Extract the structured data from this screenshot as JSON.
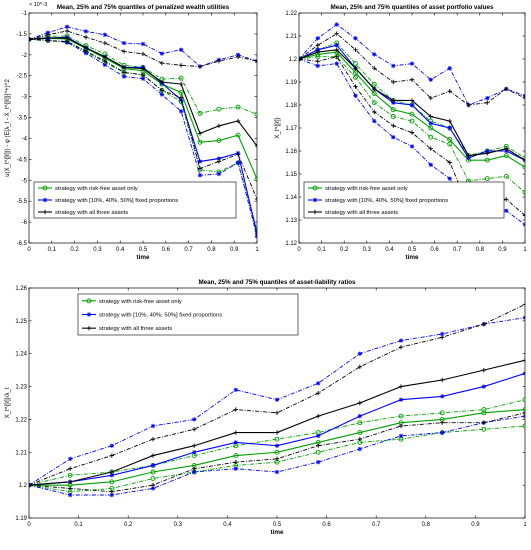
{
  "chart_data": [
    {
      "type": "line",
      "title": "Mean, 25% and 75% quantiles of penalized wealth utilities",
      "xlabel": "time",
      "ylabel": "u(X_t^{[ℓ]}) - φ (E[λ_t - X_t^{[ℓ]}]^+)^2",
      "exponent_label": "× 10^-3",
      "xlim": [
        0,
        1
      ],
      "ylim": [
        -6.5,
        -1
      ],
      "xticks": [
        0,
        0.1,
        0.2,
        0.3,
        0.4,
        0.5,
        0.6,
        0.7,
        0.8,
        0.9,
        1
      ],
      "xtick_labels": [
        "0",
        "0.1",
        "0.2",
        "0.3",
        "0.4",
        "0.5",
        "0.6",
        "0.7",
        "0.8",
        "0.9",
        "1"
      ],
      "yticks": [
        -6.5,
        -6,
        -5.5,
        -5,
        -4.5,
        -4,
        -3.5,
        -3,
        -2.5,
        -2,
        -1.5,
        -1
      ],
      "ytick_labels": [
        "-6.5",
        "-6",
        "-5.5",
        "-5",
        "-4.5",
        "-4",
        "-3.5",
        "-3",
        "-2.5",
        "-2",
        "-1.5",
        "-1"
      ],
      "legend_position": "bottom-left",
      "x": [
        0,
        0.083,
        0.167,
        0.25,
        0.333,
        0.417,
        0.5,
        0.583,
        0.667,
        0.75,
        0.833,
        0.917,
        1
      ],
      "series": [
        {
          "name": "strategy with risk-free asset only",
          "color": "#00a000",
          "marker": "o",
          "style": "solid",
          "values": [
            -1.63,
            -1.61,
            -1.62,
            -1.85,
            -2.08,
            -2.33,
            -2.38,
            -2.7,
            -2.9,
            -4.09,
            -4.05,
            -3.92,
            -4.97
          ]
        },
        {
          "name": "",
          "color": "#00a000",
          "marker": "o",
          "style": "dashdot",
          "values": [
            -1.63,
            -1.56,
            -1.55,
            -1.78,
            -1.98,
            -2.25,
            -2.3,
            -2.58,
            -2.56,
            -3.4,
            -3.3,
            -3.25,
            -3.42
          ]
        },
        {
          "name": "",
          "color": "#00a000",
          "marker": "o",
          "style": "dashdot",
          "values": [
            -1.63,
            -1.66,
            -1.7,
            -1.93,
            -2.18,
            -2.42,
            -2.48,
            -2.85,
            -3.12,
            -4.75,
            -4.8,
            -4.58,
            -6.2
          ]
        },
        {
          "name": "strategy with [10%, 40%, 50%] fixed proportions",
          "color": "#0000ff",
          "marker": "*",
          "style": "solid",
          "values": [
            -1.63,
            -1.6,
            -1.58,
            -1.83,
            -2.05,
            -2.3,
            -2.3,
            -2.68,
            -3.08,
            -4.55,
            -4.48,
            -4.35,
            -6.28
          ]
        },
        {
          "name": "",
          "color": "#0000ff",
          "marker": "*",
          "style": "dashdot",
          "values": [
            -1.63,
            -1.47,
            -1.33,
            -1.44,
            -1.52,
            -1.72,
            -1.74,
            -1.97,
            -1.88,
            -2.28,
            -2.12,
            -2.0,
            -2.15
          ]
        },
        {
          "name": "",
          "color": "#0000ff",
          "marker": "*",
          "style": "dashdot",
          "values": [
            -1.63,
            -1.65,
            -1.7,
            -1.96,
            -2.24,
            -2.52,
            -2.57,
            -2.95,
            -3.35,
            -4.88,
            -4.85,
            -4.58,
            -6.34
          ]
        },
        {
          "name": "strategy with all three assets",
          "color": "#000000",
          "marker": "+",
          "style": "solid",
          "values": [
            -1.63,
            -1.6,
            -1.6,
            -1.83,
            -2.05,
            -2.3,
            -2.33,
            -2.65,
            -2.7,
            -3.88,
            -3.7,
            -3.58,
            -4.18
          ]
        },
        {
          "name": "",
          "color": "#000000",
          "marker": "+",
          "style": "dashdot",
          "values": [
            -1.63,
            -1.52,
            -1.43,
            -1.58,
            -1.72,
            -1.92,
            -1.98,
            -2.2,
            -2.25,
            -2.28,
            -2.15,
            -2.05,
            -2.15
          ]
        },
        {
          "name": "",
          "color": "#000000",
          "marker": "+",
          "style": "dashdot",
          "values": [
            -1.63,
            -1.66,
            -1.68,
            -1.91,
            -2.15,
            -2.42,
            -2.48,
            -2.85,
            -3.02,
            -4.72,
            -4.55,
            -4.38,
            -5.45
          ]
        }
      ]
    },
    {
      "type": "line",
      "title": "Mean, 25% and 75% quantiles of asset portfolio values",
      "xlabel": "time",
      "ylabel": "X_t^{[ℓ]}",
      "exponent_label": "",
      "xlim": [
        0,
        1
      ],
      "ylim": [
        1.12,
        1.22
      ],
      "xticks": [
        0,
        0.1,
        0.2,
        0.3,
        0.4,
        0.5,
        0.6,
        0.7,
        0.8,
        0.9,
        1
      ],
      "xtick_labels": [
        "0",
        "0.1",
        "0.2",
        "0.3",
        "0.4",
        "0.5",
        "0.6",
        "0.7",
        "0.8",
        "0.9",
        "1"
      ],
      "yticks": [
        1.12,
        1.13,
        1.14,
        1.15,
        1.16,
        1.17,
        1.18,
        1.19,
        1.2,
        1.21,
        1.22
      ],
      "ytick_labels": [
        "1.12",
        "1.13",
        "1.14",
        "1.15",
        "1.16",
        "1.17",
        "1.18",
        "1.19",
        "1.2",
        "1.21",
        "1.22"
      ],
      "legend_position": "bottom-left",
      "x": [
        0,
        0.083,
        0.167,
        0.25,
        0.333,
        0.417,
        0.5,
        0.583,
        0.667,
        0.75,
        0.833,
        0.917,
        1
      ],
      "series": [
        {
          "name": "strategy with risk-free asset only",
          "color": "#00a000",
          "marker": "o",
          "style": "solid",
          "values": [
            1.2,
            1.202,
            1.203,
            1.194,
            1.185,
            1.178,
            1.176,
            1.17,
            1.165,
            1.156,
            1.156,
            1.158,
            1.153
          ]
        },
        {
          "name": "",
          "color": "#00a000",
          "marker": "o",
          "style": "dashdot",
          "values": [
            1.2,
            1.201,
            1.201,
            1.192,
            1.181,
            1.175,
            1.173,
            1.166,
            1.163,
            1.147,
            1.148,
            1.149,
            1.142
          ]
        },
        {
          "name": "",
          "color": "#00a000",
          "marker": "o",
          "style": "dashdot",
          "values": [
            1.2,
            1.204,
            1.207,
            1.198,
            1.189,
            1.182,
            1.18,
            1.173,
            1.17,
            1.158,
            1.16,
            1.162,
            1.157
          ]
        },
        {
          "name": "strategy with [10%, 40%, 50%] fixed proportions",
          "color": "#0000ff",
          "marker": "*",
          "style": "solid",
          "values": [
            1.2,
            1.204,
            1.206,
            1.196,
            1.187,
            1.181,
            1.18,
            1.172,
            1.17,
            1.157,
            1.16,
            1.16,
            1.156
          ]
        },
        {
          "name": "",
          "color": "#0000ff",
          "marker": "*",
          "style": "dashdot",
          "values": [
            1.2,
            1.209,
            1.215,
            1.209,
            1.202,
            1.197,
            1.198,
            1.191,
            1.196,
            1.18,
            1.183,
            1.187,
            1.184
          ]
        },
        {
          "name": "",
          "color": "#0000ff",
          "marker": "*",
          "style": "dashdot",
          "values": [
            1.2,
            1.197,
            1.198,
            1.184,
            1.173,
            1.166,
            1.162,
            1.154,
            1.148,
            1.133,
            1.135,
            1.134,
            1.128
          ]
        },
        {
          "name": "strategy with all three assets",
          "color": "#000000",
          "marker": "+",
          "style": "solid",
          "values": [
            1.2,
            1.203,
            1.204,
            1.196,
            1.187,
            1.182,
            1.182,
            1.175,
            1.173,
            1.158,
            1.159,
            1.161,
            1.156
          ]
        },
        {
          "name": "",
          "color": "#000000",
          "marker": "+",
          "style": "dashdot",
          "values": [
            1.2,
            1.206,
            1.211,
            1.204,
            1.196,
            1.19,
            1.191,
            1.183,
            1.186,
            1.18,
            1.181,
            1.187,
            1.183
          ]
        },
        {
          "name": "",
          "color": "#000000",
          "marker": "+",
          "style": "dashdot",
          "values": [
            1.2,
            1.199,
            1.201,
            1.188,
            1.177,
            1.171,
            1.168,
            1.161,
            1.155,
            1.136,
            1.136,
            1.139,
            1.132
          ]
        }
      ]
    },
    {
      "type": "line",
      "title": "Mean, 25% and 75% quantiles of asset-liability ratios",
      "xlabel": "time",
      "ylabel": "X_t^{[ℓ]}/λ_t",
      "exponent_label": "",
      "xlim": [
        0,
        1
      ],
      "ylim": [
        1.19,
        1.26
      ],
      "xticks": [
        0,
        0.1,
        0.2,
        0.3,
        0.4,
        0.5,
        0.6,
        0.7,
        0.8,
        0.9,
        1
      ],
      "xtick_labels": [
        "0",
        "0.1",
        "0.2",
        "0.3",
        "0.4",
        "0.5",
        "0.6",
        "0.7",
        "0.8",
        "0.9",
        "1"
      ],
      "yticks": [
        1.19,
        1.2,
        1.21,
        1.22,
        1.23,
        1.24,
        1.25,
        1.26
      ],
      "ytick_labels": [
        "1.19",
        "1.2",
        "1.21",
        "1.22",
        "1.23",
        "1.24",
        "1.25",
        "1.26"
      ],
      "legend_position": "top-left",
      "x": [
        0,
        0.083,
        0.167,
        0.25,
        0.333,
        0.417,
        0.5,
        0.583,
        0.667,
        0.75,
        0.833,
        0.917,
        1
      ],
      "series": [
        {
          "name": "strategy with risk-free asset only",
          "color": "#00a000",
          "marker": "o",
          "style": "solid",
          "values": [
            1.2,
            1.2,
            1.201,
            1.204,
            1.206,
            1.209,
            1.21,
            1.213,
            1.216,
            1.219,
            1.22,
            1.222,
            1.223
          ]
        },
        {
          "name": "",
          "color": "#00a000",
          "marker": "o",
          "style": "dashdot",
          "values": [
            1.2,
            1.203,
            1.204,
            1.206,
            1.209,
            1.212,
            1.214,
            1.216,
            1.219,
            1.221,
            1.222,
            1.223,
            1.226
          ]
        },
        {
          "name": "",
          "color": "#00a000",
          "marker": "o",
          "style": "dashdot",
          "values": [
            1.2,
            1.198,
            1.199,
            1.202,
            1.204,
            1.206,
            1.207,
            1.21,
            1.213,
            1.214,
            1.216,
            1.217,
            1.218
          ]
        },
        {
          "name": "strategy with [10%, 40%, 50%] fixed proportions",
          "color": "#0000ff",
          "marker": "*",
          "style": "solid",
          "values": [
            1.2,
            1.201,
            1.203,
            1.206,
            1.21,
            1.213,
            1.212,
            1.215,
            1.221,
            1.226,
            1.227,
            1.23,
            1.234
          ]
        },
        {
          "name": "",
          "color": "#0000ff",
          "marker": "*",
          "style": "dashdot",
          "values": [
            1.2,
            1.208,
            1.212,
            1.218,
            1.22,
            1.229,
            1.226,
            1.231,
            1.24,
            1.244,
            1.246,
            1.249,
            1.251
          ]
        },
        {
          "name": "",
          "color": "#0000ff",
          "marker": "*",
          "style": "dashdot",
          "values": [
            1.2,
            1.197,
            1.197,
            1.199,
            1.204,
            1.205,
            1.204,
            1.207,
            1.211,
            1.215,
            1.216,
            1.219,
            1.221
          ]
        },
        {
          "name": "strategy with all three assets",
          "color": "#000000",
          "marker": "+",
          "style": "solid",
          "values": [
            1.2,
            1.201,
            1.204,
            1.209,
            1.212,
            1.216,
            1.216,
            1.221,
            1.225,
            1.23,
            1.232,
            1.235,
            1.238
          ]
        },
        {
          "name": "",
          "color": "#000000",
          "marker": "+",
          "style": "dashdot",
          "values": [
            1.2,
            1.205,
            1.209,
            1.214,
            1.217,
            1.223,
            1.222,
            1.228,
            1.236,
            1.242,
            1.245,
            1.249,
            1.255
          ]
        },
        {
          "name": "",
          "color": "#000000",
          "marker": "+",
          "style": "dashdot",
          "values": [
            1.2,
            1.199,
            1.198,
            1.2,
            1.205,
            1.207,
            1.208,
            1.212,
            1.214,
            1.218,
            1.219,
            1.219,
            1.222
          ]
        }
      ]
    }
  ]
}
